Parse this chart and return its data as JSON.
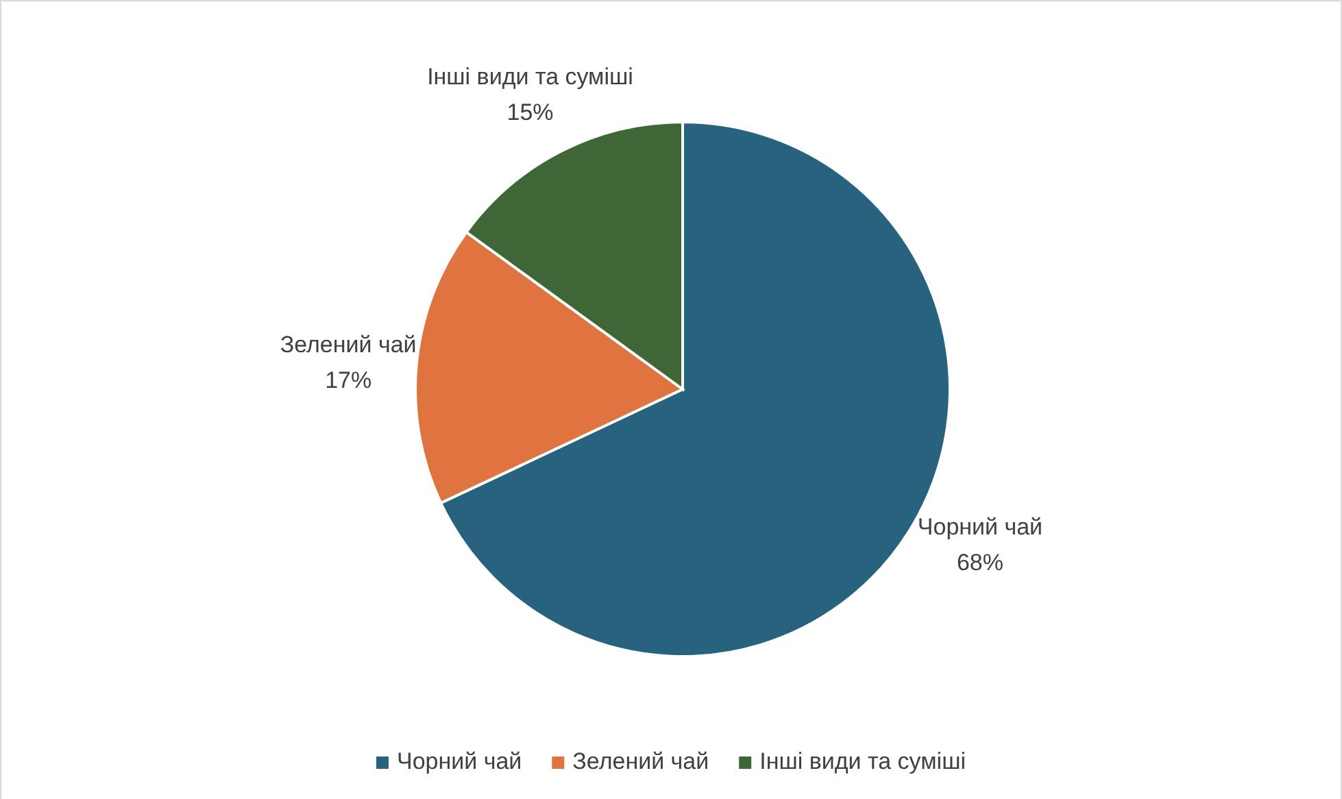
{
  "chart_data": {
    "type": "pie",
    "categories": [
      "Чорний чай",
      "Зелений чай",
      "Інші види та суміші"
    ],
    "values": [
      68,
      17,
      15
    ],
    "value_labels": [
      "68%",
      "17%",
      "15%"
    ],
    "colors": [
      "#27637f",
      "#e07441",
      "#3e6636"
    ],
    "legend": "bottom"
  }
}
